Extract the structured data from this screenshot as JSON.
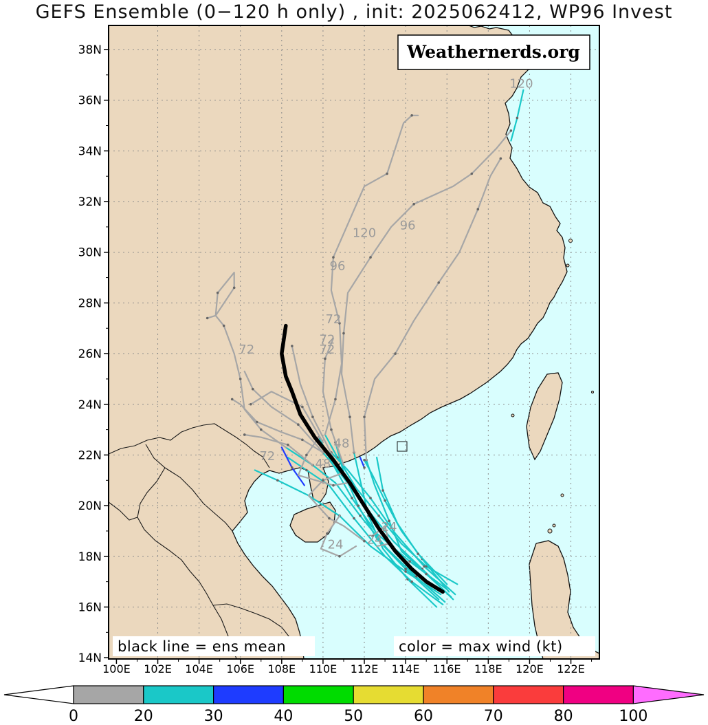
{
  "title": "GEFS Ensemble (0−120 h only) , init: 2025062412, WP96 Invest",
  "watermark": "Weathernerds.org",
  "legend_left": "black line = ens mean",
  "legend_right": "color = max wind (kt)",
  "colors": {
    "land": "#ebd8be",
    "ocean": "#d9fefe",
    "ens_mean": "#000000",
    "wind_0_20": "#a6a6a6",
    "wind_20_30": "#1ac8c8",
    "wind_30_40": "#1e3cff",
    "wind_40_50": "#00dc00",
    "wind_50_60": "#e6dc32",
    "wind_60_70": "#f08228",
    "wind_70_80": "#fa3c3c",
    "wind_80_100": "#f00082",
    "wind_100_plus": "#ff6cff"
  },
  "axes": {
    "lat_labels": [
      "38N",
      "36N",
      "34N",
      "32N",
      "30N",
      "28N",
      "26N",
      "24N",
      "22N",
      "20N",
      "18N",
      "16N",
      "14N"
    ],
    "lon_labels": [
      "100E",
      "102E",
      "104E",
      "106E",
      "108E",
      "110E",
      "112E",
      "114E",
      "116E",
      "118E",
      "120E",
      "122E"
    ]
  },
  "colorbar": {
    "ticks": [
      "0",
      "20",
      "30",
      "40",
      "50",
      "60",
      "70",
      "80",
      "100"
    ]
  },
  "hour_labels": [
    {
      "text": "120",
      "lon": 119.6,
      "lat": 36.5
    },
    {
      "text": "96",
      "lon": 114.1,
      "lat": 30.9
    },
    {
      "text": "120",
      "lon": 112.0,
      "lat": 30.6
    },
    {
      "text": "96",
      "lon": 110.7,
      "lat": 29.3
    },
    {
      "text": "72",
      "lon": 110.5,
      "lat": 27.2
    },
    {
      "text": "72",
      "lon": 106.3,
      "lat": 26.0
    },
    {
      "text": "72",
      "lon": 110.2,
      "lat": 26.4
    },
    {
      "text": "72",
      "lon": 110.2,
      "lat": 26.0
    },
    {
      "text": "48",
      "lon": 110.9,
      "lat": 22.3
    },
    {
      "text": "72",
      "lon": 107.3,
      "lat": 21.8
    },
    {
      "text": "48",
      "lon": 110.0,
      "lat": 21.5
    },
    {
      "text": "24",
      "lon": 110.6,
      "lat": 18.3
    },
    {
      "text": "24",
      "lon": 112.5,
      "lat": 18.5
    },
    {
      "text": "24",
      "lon": 113.2,
      "lat": 19.0
    }
  ],
  "ens_mean_track": [
    [
      115.8,
      16.6
    ],
    [
      115.0,
      17.0
    ],
    [
      114.3,
      17.5
    ],
    [
      113.5,
      18.2
    ],
    [
      112.7,
      19.1
    ],
    [
      112.0,
      20.0
    ],
    [
      111.3,
      20.9
    ],
    [
      110.5,
      21.8
    ],
    [
      109.6,
      22.7
    ],
    [
      108.9,
      23.6
    ],
    [
      108.5,
      24.5
    ],
    [
      108.2,
      25.1
    ],
    [
      108.0,
      26.0
    ],
    [
      108.2,
      27.1
    ]
  ],
  "member_tracks": [
    {
      "c": "#1ac8c8",
      "p": [
        [
          116.3,
          16.3
        ],
        [
          114.8,
          17.5
        ],
        [
          113.4,
          18.6
        ],
        [
          112.1,
          19.9
        ],
        [
          111.0,
          21.1
        ],
        [
          110.0,
          22.1
        ]
      ]
    },
    {
      "c": "#1ac8c8",
      "p": [
        [
          116.5,
          16.9
        ],
        [
          115.0,
          17.6
        ],
        [
          113.8,
          18.5
        ],
        [
          112.7,
          19.6
        ],
        [
          111.6,
          20.7
        ],
        [
          110.7,
          21.9
        ],
        [
          110.1,
          22.8
        ]
      ]
    },
    {
      "c": "#1ac8c8",
      "p": [
        [
          115.9,
          16.2
        ],
        [
          114.5,
          17.2
        ],
        [
          113.1,
          18.3
        ],
        [
          111.8,
          19.6
        ],
        [
          110.6,
          20.9
        ],
        [
          109.5,
          21.6
        ],
        [
          108.2,
          22.3
        ]
      ]
    },
    {
      "c": "#1ac8c8",
      "p": [
        [
          116.0,
          16.7
        ],
        [
          114.2,
          17.8
        ],
        [
          112.6,
          18.9
        ],
        [
          111.4,
          20.3
        ],
        [
          110.5,
          21.6
        ],
        [
          109.8,
          22.7
        ]
      ]
    },
    {
      "c": "#1ac8c8",
      "p": [
        [
          115.5,
          16.0
        ],
        [
          114.1,
          17.1
        ],
        [
          112.9,
          18.3
        ],
        [
          112.2,
          19.6
        ],
        [
          111.8,
          21.0
        ],
        [
          111.5,
          22.1
        ]
      ]
    },
    {
      "c": "#1ac8c8",
      "p": [
        [
          116.2,
          16.4
        ],
        [
          115.0,
          17.3
        ],
        [
          113.8,
          18.2
        ],
        [
          113.2,
          19.4
        ],
        [
          112.5,
          20.8
        ],
        [
          112.1,
          21.8
        ]
      ]
    },
    {
      "c": "#1ac8c8",
      "p": [
        [
          115.7,
          16.5
        ],
        [
          114.0,
          17.4
        ],
        [
          112.3,
          18.4
        ],
        [
          110.8,
          19.6
        ],
        [
          109.3,
          20.4
        ],
        [
          107.8,
          21.0
        ],
        [
          106.7,
          21.4
        ]
      ]
    },
    {
      "c": "#1ac8c8",
      "p": [
        [
          116.1,
          16.6
        ],
        [
          114.8,
          17.9
        ],
        [
          113.8,
          19.0
        ],
        [
          113.0,
          20.2
        ],
        [
          112.4,
          21.2
        ],
        [
          112.0,
          21.8
        ]
      ]
    },
    {
      "c": "#1ac8c8",
      "p": [
        [
          115.6,
          16.3
        ],
        [
          114.0,
          17.5
        ],
        [
          112.6,
          18.7
        ],
        [
          111.7,
          20.0
        ],
        [
          111.0,
          21.3
        ],
        [
          110.6,
          22.5
        ]
      ]
    },
    {
      "c": "#1ac8c8",
      "p": [
        [
          116.4,
          16.5
        ],
        [
          114.9,
          17.6
        ],
        [
          113.5,
          18.9
        ],
        [
          112.3,
          20.3
        ],
        [
          111.2,
          21.4
        ],
        [
          110.4,
          22.1
        ]
      ]
    },
    {
      "c": "#1ac8c8",
      "p": [
        [
          115.8,
          16.1
        ],
        [
          114.3,
          17.0
        ],
        [
          113.0,
          18.0
        ],
        [
          111.5,
          19.5
        ],
        [
          110.3,
          20.8
        ],
        [
          109.2,
          21.4
        ],
        [
          108.3,
          21.9
        ]
      ]
    },
    {
      "c": "#1ac8c8",
      "p": [
        [
          116.0,
          16.9
        ],
        [
          114.6,
          18.1
        ],
        [
          113.6,
          19.3
        ],
        [
          112.9,
          20.6
        ],
        [
          112.6,
          21.9
        ]
      ]
    },
    {
      "c": "#1ac8c8",
      "p": [
        [
          119.1,
          34.4
        ],
        [
          119.4,
          35.3
        ],
        [
          119.7,
          36.4
        ]
      ]
    },
    {
      "c": "#1e3cff",
      "p": [
        [
          108.0,
          22.3
        ],
        [
          108.5,
          21.5
        ],
        [
          109.1,
          20.8
        ]
      ]
    },
    {
      "c": "#1e3cff",
      "p": [
        [
          111.8,
          21.9
        ],
        [
          112.0,
          21.5
        ]
      ]
    },
    {
      "c": "#a6a6a6",
      "p": [
        [
          110.0,
          22.1
        ],
        [
          109.0,
          22.6
        ],
        [
          108.0,
          22.9
        ],
        [
          106.8,
          23.3
        ],
        [
          106.0,
          24.0
        ],
        [
          105.6,
          24.2
        ]
      ]
    },
    {
      "c": "#a6a6a6",
      "p": [
        [
          108.2,
          22.3
        ],
        [
          107.0,
          23.0
        ],
        [
          106.2,
          23.8
        ],
        [
          106.0,
          25.0
        ],
        [
          105.7,
          26.0
        ],
        [
          105.2,
          27.1
        ],
        [
          104.8,
          27.5
        ],
        [
          104.4,
          27.4
        ]
      ]
    },
    {
      "c": "#a6a6a6",
      "p": [
        [
          104.8,
          27.5
        ],
        [
          104.9,
          28.4
        ],
        [
          105.7,
          29.2
        ],
        [
          105.7,
          28.6
        ],
        [
          104.8,
          27.5
        ]
      ]
    },
    {
      "c": "#a6a6a6",
      "p": [
        [
          110.1,
          22.8
        ],
        [
          110.6,
          24.2
        ],
        [
          110.9,
          25.6
        ],
        [
          110.8,
          27.2
        ],
        [
          110.4,
          28.5
        ],
        [
          110.5,
          29.8
        ],
        [
          112.0,
          32.6
        ],
        [
          113.1,
          33.1
        ],
        [
          113.9,
          35.1
        ],
        [
          114.3,
          35.4
        ],
        [
          114.6,
          35.4
        ]
      ]
    },
    {
      "c": "#a6a6a6",
      "p": [
        [
          111.5,
          22.1
        ],
        [
          111.3,
          23.5
        ],
        [
          110.9,
          25.2
        ],
        [
          111.0,
          26.8
        ],
        [
          111.2,
          28.4
        ],
        [
          112.3,
          29.8
        ],
        [
          113.3,
          31.0
        ],
        [
          114.4,
          31.9
        ],
        [
          116.3,
          32.6
        ],
        [
          117.2,
          33.1
        ],
        [
          118.4,
          34.1
        ],
        [
          119.1,
          34.8
        ]
      ]
    },
    {
      "c": "#a6a6a6",
      "p": [
        [
          112.1,
          21.8
        ],
        [
          112.0,
          23.5
        ],
        [
          112.5,
          25.0
        ],
        [
          113.5,
          26.0
        ],
        [
          114.4,
          27.3
        ],
        [
          115.6,
          28.8
        ],
        [
          116.6,
          30.0
        ],
        [
          117.5,
          31.7
        ],
        [
          118.1,
          33.0
        ],
        [
          118.6,
          33.7
        ]
      ]
    },
    {
      "c": "#a6a6a6",
      "p": [
        [
          111.0,
          21.6
        ],
        [
          110.4,
          23.0
        ],
        [
          110.0,
          24.5
        ],
        [
          110.1,
          25.8
        ],
        [
          110.5,
          26.6
        ]
      ]
    },
    {
      "c": "#a6a6a6",
      "p": [
        [
          110.0,
          22.1
        ],
        [
          108.8,
          23.2
        ],
        [
          107.5,
          23.9
        ],
        [
          106.6,
          24.6
        ],
        [
          106.2,
          25.3
        ]
      ]
    },
    {
      "c": "#a6a6a6",
      "p": [
        [
          109.5,
          21.6
        ],
        [
          108.3,
          22.4
        ],
        [
          107.0,
          22.7
        ],
        [
          106.2,
          22.8
        ]
      ]
    },
    {
      "c": "#a6a6a6",
      "p": [
        [
          110.5,
          21.9
        ],
        [
          109.5,
          23.5
        ],
        [
          108.9,
          24.8
        ],
        [
          108.5,
          26.3
        ]
      ]
    },
    {
      "c": "#a6a6a6",
      "p": [
        [
          110.0,
          22.5
        ],
        [
          109.0,
          23.9
        ],
        [
          107.5,
          24.5
        ],
        [
          106.5,
          24.0
        ]
      ]
    },
    {
      "c": "#a6a6a6",
      "p": [
        [
          109.8,
          22.7
        ],
        [
          109.2,
          22.0
        ],
        [
          108.8,
          21.2
        ],
        [
          110.5,
          20.8
        ],
        [
          111.2,
          20.9
        ]
      ]
    },
    {
      "c": "#a6a6a6",
      "p": [
        [
          111.0,
          21.3
        ],
        [
          110.0,
          21.0
        ],
        [
          109.3,
          20.4
        ],
        [
          110.3,
          19.5
        ],
        [
          111.0,
          19.2
        ],
        [
          112.0,
          18.6
        ]
      ]
    },
    {
      "c": "#a6a6a6",
      "p": [
        [
          110.8,
          19.6
        ],
        [
          110.2,
          18.9
        ],
        [
          109.9,
          18.3
        ],
        [
          110.8,
          18.0
        ],
        [
          111.6,
          18.4
        ]
      ]
    },
    {
      "c": "#a6a6a6",
      "p": [
        [
          112.6,
          18.4
        ],
        [
          113.2,
          18.5
        ],
        [
          113.0,
          19.2
        ],
        [
          112.4,
          18.8
        ]
      ]
    }
  ]
}
